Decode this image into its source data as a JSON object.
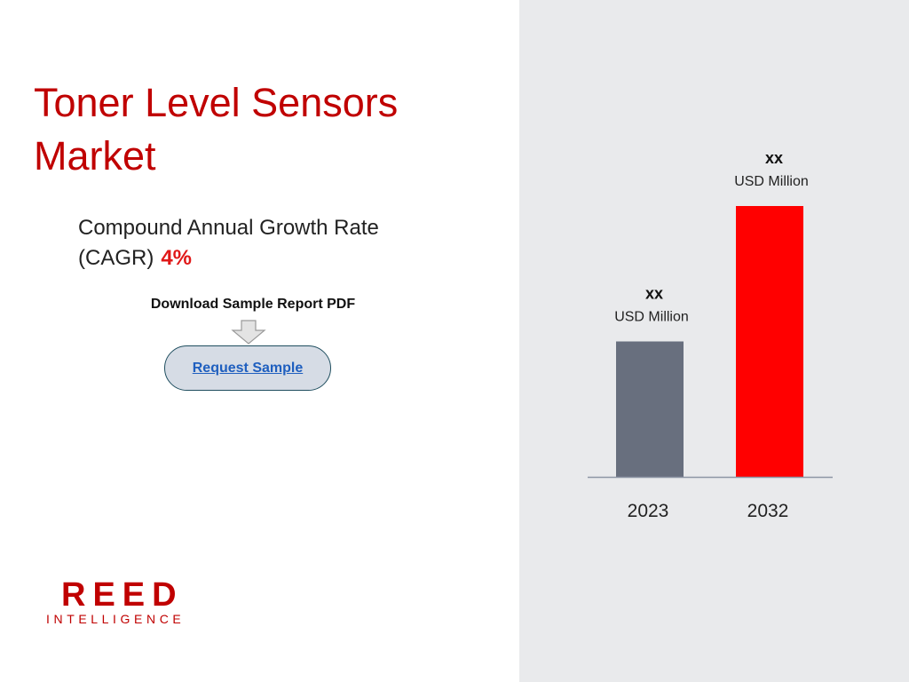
{
  "title": "Toner Level Sensors Market",
  "cagr": {
    "label_line1": "Compound Annual Growth Rate",
    "label_line2": "(CAGR)",
    "value": "4%"
  },
  "download": {
    "label": "Download Sample Report PDF",
    "button_label": "Request Sample"
  },
  "logo": {
    "top": "REED",
    "bottom": "INTELLIGENCE"
  },
  "colors": {
    "title": "#c00000",
    "accent": "#e01818",
    "panel_bg": "#e9eaec",
    "bar_2023": "#686f7e",
    "bar_2032": "#ff0000",
    "button_bg": "#d6dce5",
    "link": "#1f5fbf"
  },
  "chart_data": {
    "type": "bar",
    "categories": [
      "2023",
      "2032"
    ],
    "values": [
      150,
      300
    ],
    "value_labels": [
      {
        "value": "xx",
        "unit": "USD Million"
      },
      {
        "value": "xx",
        "unit": "USD Million"
      }
    ],
    "bar_colors": [
      "#686f7e",
      "#ff0000"
    ],
    "ylim": [
      0,
      300
    ],
    "grid": false,
    "legend": "none"
  }
}
